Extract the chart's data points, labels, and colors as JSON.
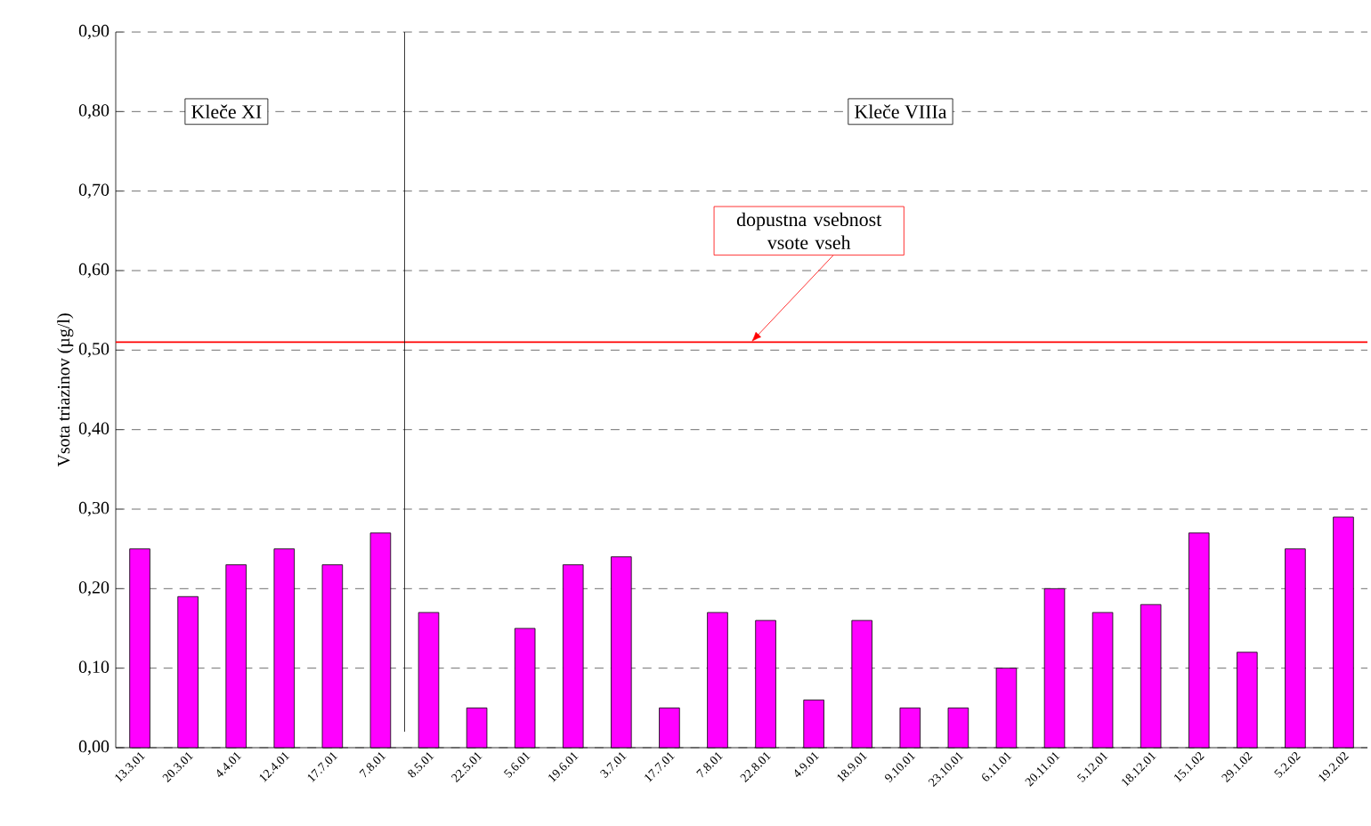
{
  "chart_data": {
    "type": "bar",
    "ylabel": "Vsota triazinov (µg/l)",
    "categories": [
      "13.3.01",
      "20.3.01",
      "4.4.01",
      "12.4.01",
      "17.7.01",
      "7.8.01",
      "8.5.01",
      "22.5.01",
      "5.6.01",
      "19.6.01",
      "3.7.01",
      "17.7.01",
      "7.8.01",
      "22.8.01",
      "4.9.01",
      "18.9.01",
      "9.10.01",
      "23.10.01",
      "6.11.01",
      "20.11.01",
      "5.12.01",
      "18.12.01",
      "15.1.02",
      "29.1.02",
      "5.2.02",
      "19.2.02"
    ],
    "values": [
      0.25,
      0.19,
      0.23,
      0.25,
      0.23,
      0.27,
      0.17,
      0.05,
      0.15,
      0.23,
      0.24,
      0.05,
      0.17,
      0.16,
      0.06,
      0.16,
      0.05,
      0.05,
      0.1,
      0.2,
      0.17,
      0.18,
      0.27,
      0.12,
      0.25,
      0.29
    ],
    "color": "#ff00ff",
    "ylim": [
      0,
      0.9
    ],
    "yticks": [
      {
        "value": 0,
        "label": "0,00"
      },
      {
        "value": 0.1,
        "label": "0,10"
      },
      {
        "value": 0.2,
        "label": "0,20"
      },
      {
        "value": 0.3,
        "label": "0,30"
      },
      {
        "value": 0.4,
        "label": "0,40"
      },
      {
        "value": 0.5,
        "label": "0,50"
      },
      {
        "value": 0.6,
        "label": "0,60"
      },
      {
        "value": 0.7,
        "label": "0,70"
      },
      {
        "value": 0.8,
        "label": "0,80"
      },
      {
        "value": 0.9,
        "label": "0,90"
      }
    ],
    "grid": "y",
    "ref_lines": [
      {
        "axis": "y",
        "value": 0.51,
        "label": "dopustna vsebnost vsote vseh",
        "color": "#ff0000"
      },
      {
        "axis": "x",
        "value": "8.5.01",
        "color": "#000000"
      }
    ],
    "annotations": [
      "Kleče XI",
      "Kleče VIIIa"
    ]
  }
}
